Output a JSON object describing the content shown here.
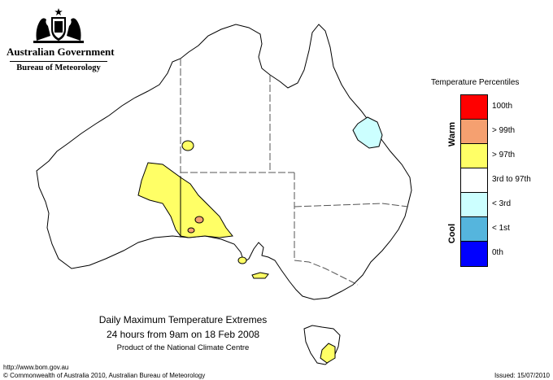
{
  "header": {
    "government": "Australian Government",
    "bureau": "Bureau of Meteorology"
  },
  "map": {
    "title_line1": "Daily Maximum Temperature Extremes",
    "title_line2": "24 hours from 9am on 18 Feb 2008",
    "title_line3": "Product of the National Climate Centre",
    "regions": [
      {
        "category": "> 97th",
        "area": "central South Australia"
      },
      {
        "category": "> 99th",
        "area": "central South Australia"
      },
      {
        "category": "> 97th",
        "area": "south-eastern Western Australia"
      },
      {
        "category": "< 3rd",
        "area": "north Queensland"
      },
      {
        "category": "> 97th",
        "area": "Tasmania"
      }
    ]
  },
  "legend": {
    "title": "Temperature Percentiles",
    "warm_label": "Warm",
    "cool_label": "Cool",
    "items": [
      {
        "label": "100th",
        "color": "#ff0000"
      },
      {
        "label": "> 99th",
        "color": "#f5a070"
      },
      {
        "label": "> 97th",
        "color": "#ffff66"
      },
      {
        "label": "3rd to 97th",
        "color": "#ffffff"
      },
      {
        "label": "< 3rd",
        "color": "#ccffff"
      },
      {
        "label": "< 1st",
        "color": "#55b5dd"
      },
      {
        "label": "0th",
        "color": "#0000ff"
      }
    ]
  },
  "footer": {
    "url": "http://www.bom.gov.au",
    "copyright": "© Commonwealth of Australia 2010, Australian Bureau of Meteorology",
    "issued": "Issued: 15/07/2010"
  },
  "colors": {
    "land": "#ffffff",
    "outline": "#000000",
    "borders": "#555555"
  }
}
